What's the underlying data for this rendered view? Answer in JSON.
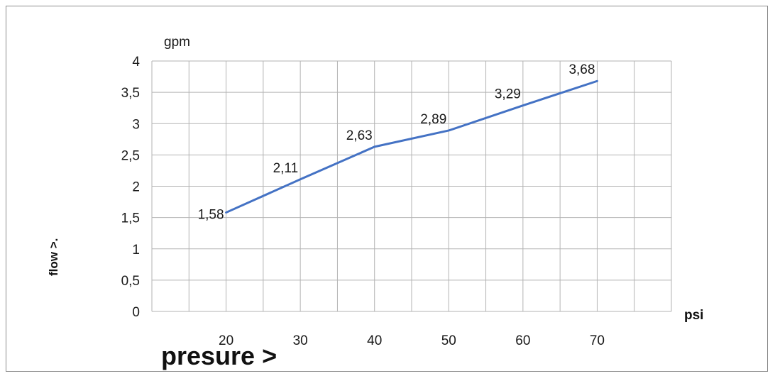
{
  "chart_data": {
    "type": "line",
    "x": [
      20,
      30,
      40,
      50,
      60,
      70
    ],
    "series": [
      {
        "values": [
          1.58,
          2.11,
          2.63,
          2.89,
          3.29,
          3.68
        ],
        "labels": [
          "1,58",
          "2,11",
          "2,63",
          "2,89",
          "3,29",
          "3,68"
        ]
      }
    ],
    "x_tick_labels": [
      "20",
      "30",
      "40",
      "50",
      "60",
      "70"
    ],
    "y_tick_values": [
      0,
      0.5,
      1,
      1.5,
      2,
      2.5,
      3,
      3.5,
      4
    ],
    "y_tick_labels": [
      "0",
      "0,5",
      "1",
      "1,5",
      "2",
      "2,5",
      "3",
      "3,5",
      "4"
    ],
    "ylim": [
      0,
      4
    ],
    "xlim": [
      10,
      80
    ],
    "y_unit": "gpm",
    "x_unit": "psi",
    "xlabel": "presure >",
    "ylabel": "flow >.",
    "grid": true,
    "colors": {
      "line": "#4472C4",
      "grid": "#b3b3b3"
    }
  }
}
